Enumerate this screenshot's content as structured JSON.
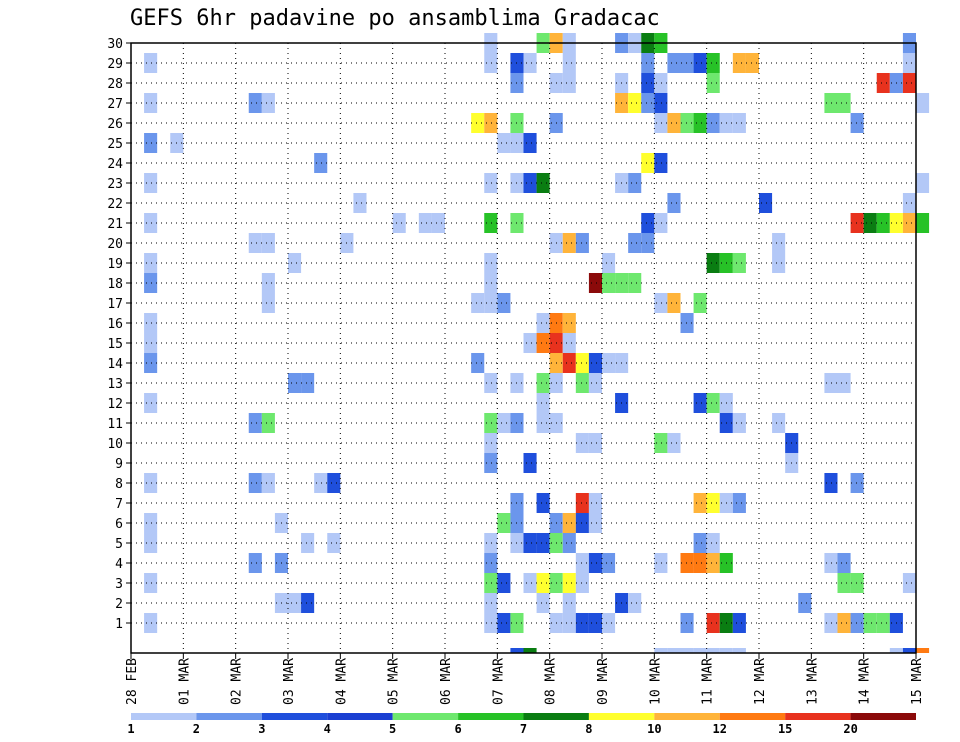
{
  "chart_data": {
    "type": "heatmap",
    "title": "GEFS 6hr padavine po ansamblima Gradacac",
    "x_tick_labels": [
      "28 FEB",
      "01 MAR",
      "02 MAR",
      "03 MAR",
      "04 MAR",
      "05 MAR",
      "06 MAR",
      "07 MAR",
      "08 MAR",
      "09 MAR",
      "10 MAR",
      "11 MAR",
      "12 MAR",
      "13 MAR",
      "14 MAR",
      "15 MAR"
    ],
    "y_tick_labels": [
      "1",
      "2",
      "3",
      "4",
      "5",
      "6",
      "7",
      "8",
      "9",
      "10",
      "11",
      "12",
      "13",
      "14",
      "15",
      "16",
      "17",
      "18",
      "19",
      "20",
      "21",
      "22",
      "23",
      "24",
      "25",
      "26",
      "27",
      "28",
      "29",
      "30"
    ],
    "xlabel": "",
    "ylabel": "",
    "ylim": [
      1,
      30
    ],
    "steps_per_day": 4,
    "grid": true,
    "legend_placement": "bottom",
    "colorbar": {
      "labels": [
        "1",
        "2",
        "3",
        "4",
        "5",
        "6",
        "7",
        "8",
        "10",
        "12",
        "15",
        "20"
      ],
      "colors": [
        "#b3c8f7",
        "#6b96ec",
        "#1f4fdc",
        "#1b3fd2",
        "#6ee86e",
        "#27c227",
        "#0a7d12",
        "#ffff2e",
        "#ffb43a",
        "#ff7a12",
        "#e8321e",
        "#8b0a0a"
      ]
    },
    "members": [
      {
        "member": 1,
        "cells": [
          [
            0.25,
            1
          ],
          [
            6.75,
            1
          ],
          [
            7,
            3
          ],
          [
            7.25,
            5
          ],
          [
            8,
            1
          ],
          [
            8.25,
            1
          ],
          [
            8.5,
            3
          ],
          [
            8.75,
            3
          ],
          [
            9,
            1
          ],
          [
            10.5,
            2
          ],
          [
            11,
            11
          ],
          [
            11.25,
            7
          ],
          [
            11.5,
            3
          ],
          [
            13.25,
            1
          ],
          [
            13.5,
            9
          ],
          [
            13.75,
            2
          ],
          [
            14,
            5
          ],
          [
            14.25,
            5
          ],
          [
            14.5,
            3
          ]
        ]
      },
      {
        "member": 2,
        "cells": [
          [
            2.75,
            1
          ],
          [
            3,
            1
          ],
          [
            3.25,
            3
          ],
          [
            6.75,
            1
          ],
          [
            7.75,
            1
          ],
          [
            8.25,
            1
          ],
          [
            9.25,
            3
          ],
          [
            9.5,
            1
          ],
          [
            12.75,
            2
          ]
        ]
      },
      {
        "member": 3,
        "cells": [
          [
            0.25,
            1
          ],
          [
            6.75,
            5
          ],
          [
            7,
            3
          ],
          [
            7.5,
            1
          ],
          [
            7.75,
            8
          ],
          [
            8,
            5
          ],
          [
            8.25,
            8
          ],
          [
            8.5,
            1
          ],
          [
            13.5,
            5
          ],
          [
            13.75,
            5
          ],
          [
            14.75,
            1
          ]
        ]
      },
      {
        "member": 4,
        "cells": [
          [
            2.25,
            2
          ],
          [
            2.75,
            2
          ],
          [
            6.75,
            2
          ],
          [
            8.5,
            1
          ],
          [
            8.75,
            3
          ],
          [
            9,
            2
          ],
          [
            10,
            1
          ],
          [
            10.5,
            10
          ],
          [
            10.75,
            10
          ],
          [
            11,
            9
          ],
          [
            11.25,
            6
          ],
          [
            13.25,
            1
          ],
          [
            13.5,
            2
          ]
        ]
      },
      {
        "member": 5,
        "cells": [
          [
            0.25,
            1
          ],
          [
            3.25,
            1
          ],
          [
            3.75,
            1
          ],
          [
            6.75,
            1
          ],
          [
            7.25,
            1
          ],
          [
            7.5,
            3
          ],
          [
            7.75,
            3
          ],
          [
            8,
            5
          ],
          [
            8.25,
            2
          ],
          [
            10.75,
            2
          ],
          [
            11,
            1
          ]
        ]
      },
      {
        "member": 6,
        "cells": [
          [
            0.25,
            1
          ],
          [
            2.75,
            1
          ],
          [
            7,
            5
          ],
          [
            7.25,
            2
          ],
          [
            8,
            2
          ],
          [
            8.25,
            9
          ],
          [
            8.5,
            3
          ],
          [
            8.75,
            1
          ]
        ]
      },
      {
        "member": 7,
        "cells": [
          [
            7.25,
            2
          ],
          [
            7.75,
            3
          ],
          [
            8.5,
            11
          ],
          [
            8.75,
            1
          ],
          [
            10.75,
            9
          ],
          [
            11,
            8
          ],
          [
            11.25,
            1
          ],
          [
            11.5,
            2
          ]
        ]
      },
      {
        "member": 8,
        "cells": [
          [
            0.25,
            1
          ],
          [
            2.25,
            2
          ],
          [
            2.5,
            1
          ],
          [
            3.5,
            1
          ],
          [
            3.75,
            3
          ],
          [
            13.25,
            3
          ],
          [
            13.75,
            2
          ]
        ]
      },
      {
        "member": 9,
        "cells": [
          [
            6.75,
            2
          ],
          [
            7.5,
            3
          ],
          [
            12.5,
            1
          ]
        ]
      },
      {
        "member": 10,
        "cells": [
          [
            6.75,
            1
          ],
          [
            8.5,
            1
          ],
          [
            8.75,
            1
          ],
          [
            10,
            5
          ],
          [
            10.25,
            1
          ],
          [
            12.5,
            3
          ]
        ]
      },
      {
        "member": 11,
        "cells": [
          [
            2.25,
            2
          ],
          [
            2.5,
            5
          ],
          [
            6.75,
            5
          ],
          [
            7,
            1
          ],
          [
            7.25,
            2
          ],
          [
            7.75,
            1
          ],
          [
            8,
            1
          ],
          [
            11.25,
            3
          ],
          [
            11.5,
            1
          ],
          [
            12.25,
            1
          ]
        ]
      },
      {
        "member": 12,
        "cells": [
          [
            0.25,
            1
          ],
          [
            7.75,
            1
          ],
          [
            9.25,
            3
          ],
          [
            10.75,
            3
          ],
          [
            11,
            5
          ],
          [
            11.25,
            1
          ]
        ]
      },
      {
        "member": 13,
        "cells": [
          [
            3,
            2
          ],
          [
            3.25,
            2
          ],
          [
            6.75,
            1
          ],
          [
            7.25,
            1
          ],
          [
            7.75,
            5
          ],
          [
            8,
            1
          ],
          [
            8.5,
            5
          ],
          [
            8.75,
            1
          ],
          [
            13.25,
            1
          ],
          [
            13.5,
            1
          ]
        ]
      },
      {
        "member": 14,
        "cells": [
          [
            0.25,
            2
          ],
          [
            6.5,
            2
          ],
          [
            8,
            9
          ],
          [
            8.25,
            11
          ],
          [
            8.5,
            8
          ],
          [
            8.75,
            3
          ],
          [
            9,
            1
          ],
          [
            9.25,
            1
          ]
        ]
      },
      {
        "member": 15,
        "cells": [
          [
            0.25,
            1
          ],
          [
            7.5,
            1
          ],
          [
            7.75,
            10
          ],
          [
            8,
            11
          ],
          [
            8.25,
            1
          ]
        ]
      },
      {
        "member": 16,
        "cells": [
          [
            0.25,
            1
          ],
          [
            7.75,
            1
          ],
          [
            8,
            10
          ],
          [
            8.25,
            9
          ],
          [
            10.5,
            2
          ]
        ]
      },
      {
        "member": 17,
        "cells": [
          [
            2.5,
            1
          ],
          [
            6.5,
            1
          ],
          [
            6.75,
            1
          ],
          [
            7,
            2
          ],
          [
            10,
            1
          ],
          [
            10.25,
            9
          ],
          [
            10.75,
            5
          ]
        ]
      },
      {
        "member": 18,
        "cells": [
          [
            0.25,
            2
          ],
          [
            2.5,
            1
          ],
          [
            6.75,
            1
          ],
          [
            8.75,
            12
          ],
          [
            9,
            5
          ],
          [
            9.25,
            5
          ],
          [
            9.5,
            5
          ]
        ]
      },
      {
        "member": 19,
        "cells": [
          [
            0.25,
            1
          ],
          [
            3,
            1
          ],
          [
            6.75,
            1
          ],
          [
            9,
            1
          ],
          [
            11,
            7
          ],
          [
            11.25,
            6
          ],
          [
            11.5,
            5
          ],
          [
            12.25,
            1
          ]
        ]
      },
      {
        "member": 20,
        "cells": [
          [
            2.25,
            1
          ],
          [
            2.5,
            1
          ],
          [
            4,
            1
          ],
          [
            8,
            1
          ],
          [
            8.25,
            9
          ],
          [
            8.5,
            2
          ],
          [
            9.5,
            2
          ],
          [
            9.75,
            2
          ],
          [
            12.25,
            1
          ]
        ]
      },
      {
        "member": 21,
        "cells": [
          [
            0.25,
            1
          ],
          [
            5,
            1
          ],
          [
            5.5,
            1
          ],
          [
            5.75,
            1
          ],
          [
            6.75,
            6
          ],
          [
            7.25,
            5
          ],
          [
            9.75,
            3
          ],
          [
            10,
            1
          ],
          [
            13.75,
            11
          ],
          [
            14,
            7
          ],
          [
            14.25,
            6
          ],
          [
            14.5,
            8
          ],
          [
            14.75,
            9
          ],
          [
            15,
            6
          ]
        ]
      },
      {
        "member": 22,
        "cells": [
          [
            4.25,
            1
          ],
          [
            10.25,
            2
          ],
          [
            12,
            3
          ],
          [
            14.75,
            1
          ]
        ]
      },
      {
        "member": 23,
        "cells": [
          [
            0.25,
            1
          ],
          [
            6.75,
            1
          ],
          [
            7.25,
            1
          ],
          [
            7.5,
            3
          ],
          [
            7.75,
            7
          ],
          [
            9.25,
            1
          ],
          [
            9.5,
            2
          ],
          [
            15,
            1
          ]
        ]
      },
      {
        "member": 24,
        "cells": [
          [
            3.5,
            2
          ],
          [
            9.75,
            8
          ],
          [
            10,
            3
          ]
        ]
      },
      {
        "member": 25,
        "cells": [
          [
            0.25,
            2
          ],
          [
            0.75,
            1
          ],
          [
            7,
            1
          ],
          [
            7.25,
            1
          ],
          [
            7.5,
            3
          ]
        ]
      },
      {
        "member": 26,
        "cells": [
          [
            6.5,
            8
          ],
          [
            6.75,
            9
          ],
          [
            7.25,
            5
          ],
          [
            8,
            2
          ],
          [
            10,
            1
          ],
          [
            10.25,
            9
          ],
          [
            10.5,
            5
          ],
          [
            10.75,
            6
          ],
          [
            11,
            2
          ],
          [
            11.25,
            1
          ],
          [
            11.5,
            1
          ],
          [
            13.75,
            2
          ]
        ]
      },
      {
        "member": 27,
        "cells": [
          [
            0.25,
            1
          ],
          [
            2.25,
            2
          ],
          [
            2.5,
            1
          ],
          [
            9.25,
            9
          ],
          [
            9.5,
            8
          ],
          [
            9.75,
            2
          ],
          [
            10,
            3
          ],
          [
            13.25,
            5
          ],
          [
            13.5,
            5
          ],
          [
            15,
            1
          ]
        ]
      },
      {
        "member": 28,
        "cells": [
          [
            7.25,
            2
          ],
          [
            8,
            1
          ],
          [
            8.25,
            1
          ],
          [
            9.25,
            1
          ],
          [
            9.75,
            3
          ],
          [
            10,
            1
          ],
          [
            11,
            5
          ],
          [
            14.25,
            11
          ],
          [
            14.5,
            2
          ],
          [
            14.75,
            11
          ]
        ]
      },
      {
        "member": 29,
        "cells": [
          [
            0.25,
            1
          ],
          [
            6.75,
            1
          ],
          [
            7.25,
            3
          ],
          [
            7.5,
            1
          ],
          [
            8.25,
            1
          ],
          [
            9.75,
            2
          ],
          [
            10.25,
            2
          ],
          [
            10.5,
            2
          ],
          [
            10.75,
            3
          ],
          [
            11,
            6
          ],
          [
            11.5,
            9
          ],
          [
            11.75,
            9
          ],
          [
            14.75,
            1
          ]
        ]
      },
      {
        "member": 30,
        "cells": [
          [
            6.75,
            1
          ],
          [
            7.75,
            5
          ],
          [
            8,
            9
          ],
          [
            8.25,
            1
          ],
          [
            9.25,
            2
          ],
          [
            9.5,
            1
          ],
          [
            9.75,
            7
          ],
          [
            10,
            6
          ],
          [
            14.75,
            2
          ]
        ]
      }
    ],
    "bottom_row_cells": [
      [
        7.25,
        3
      ],
      [
        7.5,
        7
      ],
      [
        10,
        1
      ],
      [
        10.25,
        1
      ],
      [
        10.5,
        1
      ],
      [
        10.75,
        1
      ],
      [
        11,
        1
      ],
      [
        11.25,
        1
      ],
      [
        11.5,
        1
      ],
      [
        14.5,
        1
      ],
      [
        14.75,
        3
      ],
      [
        15,
        10
      ]
    ]
  }
}
